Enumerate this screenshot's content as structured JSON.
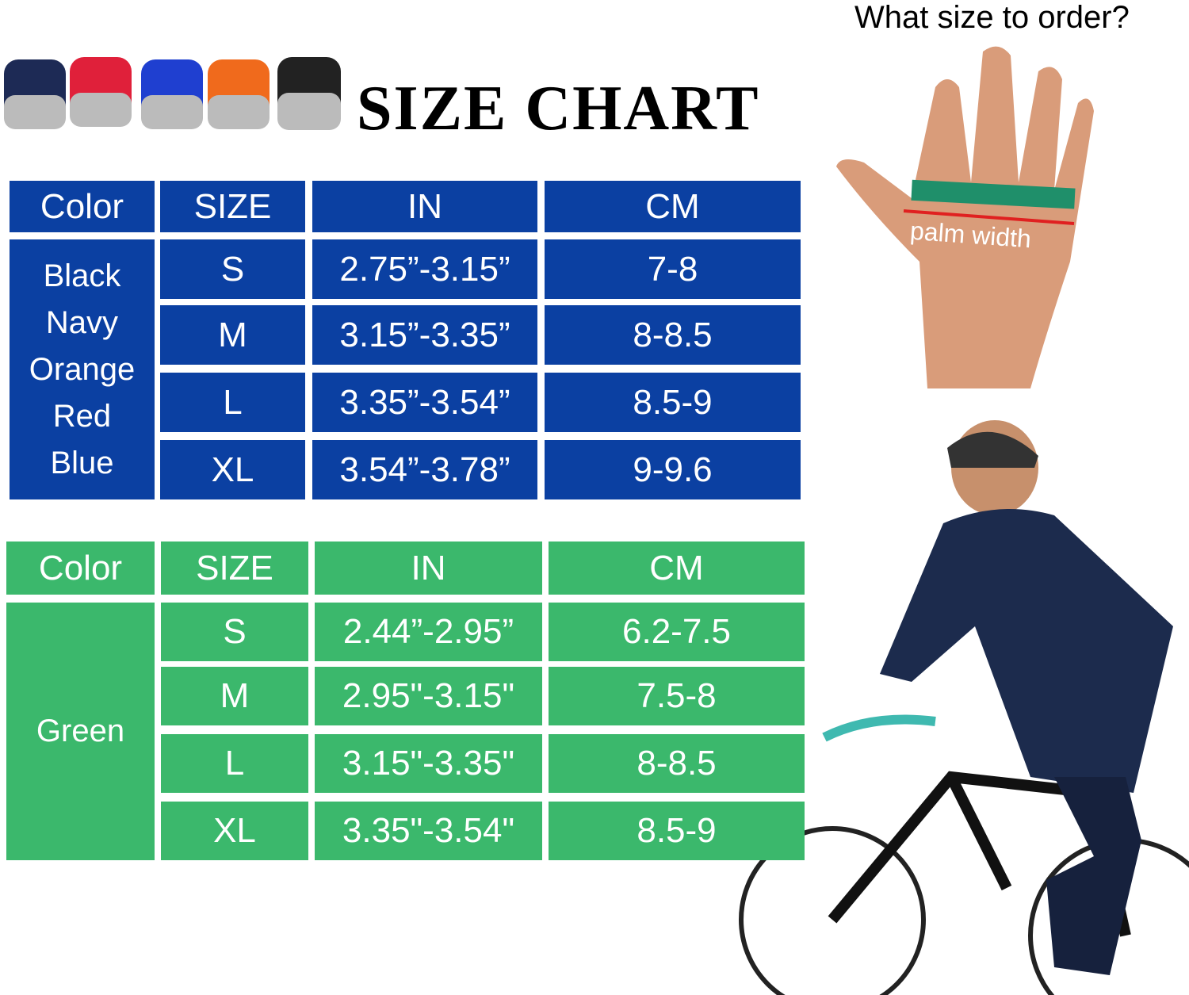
{
  "header": {
    "title": "SIZE CHART",
    "question": "What size to order?",
    "hand_label": "palm width"
  },
  "blue_table": {
    "headers": [
      "Color",
      "SIZE",
      "IN",
      "CM"
    ],
    "colors": [
      "Black",
      "Navy",
      "Orange",
      "Red",
      "Blue"
    ],
    "rows": [
      [
        "S",
        "2.75”-3.15”",
        "7-8"
      ],
      [
        "M",
        "3.15”-3.35”",
        "8-8.5"
      ],
      [
        "L",
        "3.35”-3.54”",
        "8.5-9"
      ],
      [
        "XL",
        "3.54”-3.78”",
        "9-9.6"
      ]
    ]
  },
  "green_table": {
    "headers": [
      "Color",
      "SIZE",
      "IN",
      "CM"
    ],
    "colors": [
      "Green"
    ],
    "rows": [
      [
        "S",
        "2.44”-2.95”",
        "6.2-7.5"
      ],
      [
        "M",
        "2.95\"-3.15\"",
        "7.5-8"
      ],
      [
        "L",
        "3.15\"-3.35\"",
        "8-8.5"
      ],
      [
        "XL",
        "3.35\"-3.54\"",
        "8.5-9"
      ]
    ]
  }
}
